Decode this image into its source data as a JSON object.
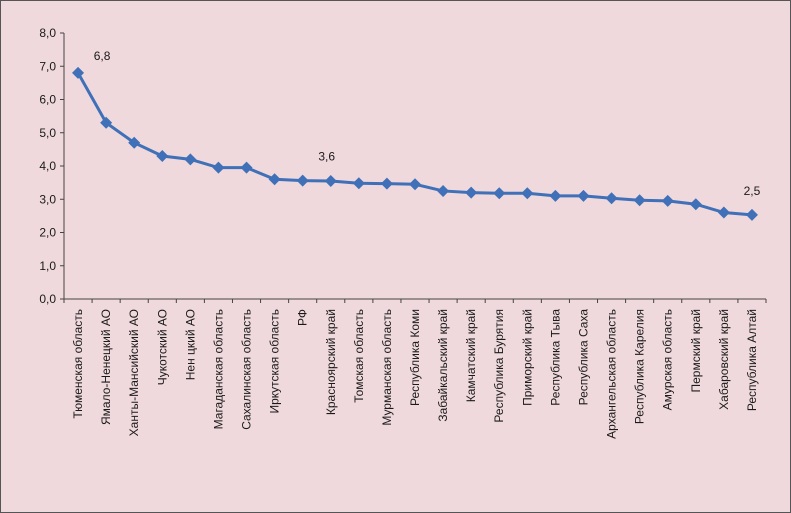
{
  "chart_data": {
    "type": "line",
    "categories": [
      "Тюменская область",
      "Ямало-Ненецкий АО",
      "Ханты-Мансийский АО",
      "Чукотский АО",
      "Нен   цкий АО",
      "Магаданская область",
      "Сахалинская область",
      "Иркутская область",
      "РФ",
      "Красноярский край",
      "Томская область",
      "Мурманская область",
      "Республика Коми",
      "Забайкальский край",
      "Камчатский край",
      "Республика Бурятия",
      "Приморский край",
      "Республика Тыва",
      "Республика Саха",
      "Архангельская область",
      "Республика Карелия",
      "Амурская область",
      "Пермский край",
      "Хабаровский край",
      "Республика Алтай"
    ],
    "values": [
      6.8,
      5.3,
      4.7,
      4.3,
      4.2,
      3.95,
      3.95,
      3.6,
      3.56,
      3.55,
      3.48,
      3.47,
      3.45,
      3.25,
      3.2,
      3.18,
      3.18,
      3.1,
      3.1,
      3.03,
      2.97,
      2.95,
      2.85,
      2.6,
      2.53
    ],
    "value_labels": [
      "6,8",
      null,
      null,
      null,
      null,
      null,
      null,
      null,
      "3,6",
      null,
      null,
      null,
      null,
      null,
      null,
      null,
      null,
      null,
      null,
      null,
      null,
      null,
      null,
      null,
      "2,5"
    ],
    "color": "#3f70b8",
    "ylim": [
      0,
      8
    ],
    "yticks": [
      {
        "value": 0,
        "label": "0,0"
      },
      {
        "value": 1,
        "label": "1,0"
      },
      {
        "value": 2,
        "label": "2,0"
      },
      {
        "value": 3,
        "label": "3,0"
      },
      {
        "value": 4,
        "label": "4,0"
      },
      {
        "value": 5,
        "label": "5,0"
      },
      {
        "value": 6,
        "label": "6,0"
      },
      {
        "value": 7,
        "label": "7,0"
      },
      {
        "value": 8,
        "label": "8,0"
      }
    ]
  }
}
